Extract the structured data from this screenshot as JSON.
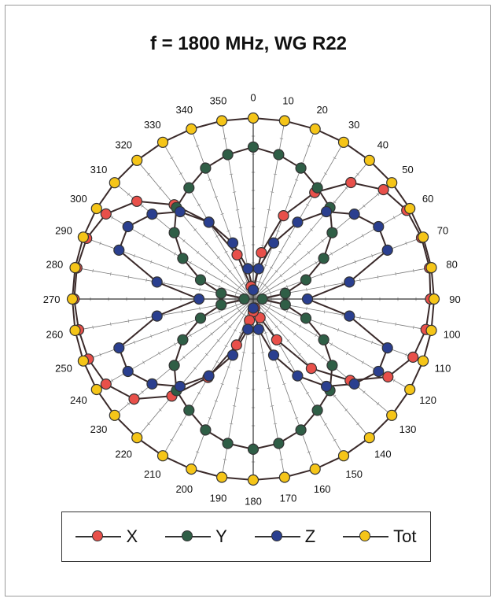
{
  "chart_data": {
    "type": "polar",
    "title": "f = 1800 MHz, WG R22",
    "angle_ticks": [
      "0",
      "10",
      "20",
      "30",
      "40",
      "50",
      "60",
      "70",
      "80",
      "90",
      "100",
      "110",
      "120",
      "130",
      "140",
      "150",
      "160",
      "170",
      "180",
      "190",
      "200",
      "210",
      "220",
      "230",
      "240",
      "250",
      "260",
      "270",
      "280",
      "290",
      "300",
      "310",
      "320",
      "330",
      "340",
      "350"
    ],
    "angles_deg": [
      0,
      10,
      20,
      30,
      40,
      50,
      60,
      70,
      80,
      90,
      100,
      110,
      120,
      130,
      140,
      150,
      160,
      170,
      180,
      190,
      200,
      210,
      220,
      230,
      240,
      250,
      260,
      270,
      280,
      290,
      300,
      310,
      320,
      330,
      340,
      350
    ],
    "radial_max": 1.0,
    "grid": true,
    "legend_position": "bottom",
    "series": [
      {
        "name": "X",
        "color": "#e8504a",
        "values": [
          0.05,
          0.26,
          0.49,
          0.68,
          0.84,
          0.94,
          0.98,
          0.99,
          0.99,
          0.98,
          0.97,
          0.94,
          0.86,
          0.7,
          0.5,
          0.26,
          0.11,
          0.05,
          0.07,
          0.12,
          0.27,
          0.5,
          0.7,
          0.86,
          0.94,
          0.97,
          0.98,
          0.99,
          0.99,
          0.98,
          0.94,
          0.84,
          0.68,
          0.49,
          0.26,
          0.07
        ]
      },
      {
        "name": "Y",
        "color": "#2f5e46",
        "values": [
          0.84,
          0.81,
          0.77,
          0.71,
          0.66,
          0.57,
          0.45,
          0.31,
          0.18,
          0.05,
          0.18,
          0.31,
          0.45,
          0.57,
          0.66,
          0.71,
          0.77,
          0.81,
          0.83,
          0.81,
          0.77,
          0.71,
          0.66,
          0.57,
          0.45,
          0.31,
          0.18,
          0.05,
          0.18,
          0.31,
          0.45,
          0.57,
          0.66,
          0.71,
          0.77,
          0.81
        ]
      },
      {
        "name": "Z",
        "color": "#2a3f8f",
        "values": [
          0.05,
          0.17,
          0.33,
          0.49,
          0.63,
          0.73,
          0.8,
          0.79,
          0.54,
          0.3,
          0.54,
          0.79,
          0.8,
          0.73,
          0.63,
          0.49,
          0.33,
          0.17,
          0.05,
          0.17,
          0.33,
          0.49,
          0.63,
          0.73,
          0.8,
          0.79,
          0.54,
          0.3,
          0.54,
          0.79,
          0.8,
          0.73,
          0.63,
          0.49,
          0.33,
          0.17
        ]
      },
      {
        "name": "Tot",
        "color": "#f5c518",
        "values": [
          1,
          1,
          1,
          1,
          1,
          1,
          1,
          1,
          1,
          1,
          1,
          1,
          1,
          1,
          1,
          1,
          1,
          1,
          1,
          1,
          1,
          1,
          1,
          1,
          1,
          1,
          1,
          1,
          1,
          1,
          1,
          1,
          1,
          1,
          1,
          1
        ]
      }
    ]
  }
}
